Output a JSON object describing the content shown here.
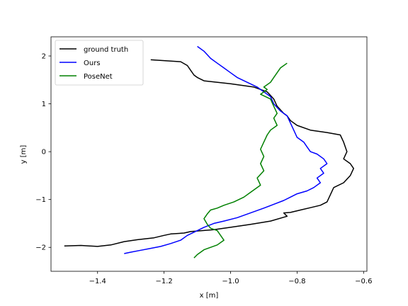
{
  "chart_data": {
    "type": "line",
    "title": "",
    "xlabel": "x [m]",
    "ylabel": "y [m]",
    "xlim": [
      -1.54,
      -0.59
    ],
    "ylim": [
      -2.5,
      2.4
    ],
    "xticks": [
      -1.4,
      -1.2,
      -1.0,
      -0.8,
      -0.6
    ],
    "xtick_labels": [
      "−1.4",
      "−1.2",
      "−1.0",
      "−0.8",
      "−0.6"
    ],
    "yticks": [
      -2,
      -1,
      0,
      1,
      2
    ],
    "ytick_labels": [
      "−2",
      "−1",
      "0",
      "1",
      "2"
    ],
    "grid": false,
    "legend_position": "top-left",
    "series": [
      {
        "name": "ground truth",
        "color": "#000000",
        "x": [
          -1.24,
          -1.15,
          -1.13,
          -1.12,
          -1.11,
          -1.1,
          -1.08,
          -1.0,
          -0.93,
          -0.89,
          -0.87,
          -0.86,
          -0.84,
          -0.83,
          -0.82,
          -0.8,
          -0.76,
          -0.71,
          -0.67,
          -0.66,
          -0.65,
          -0.66,
          -0.64,
          -0.63,
          -0.64,
          -0.66,
          -0.69,
          -0.7,
          -0.71,
          -0.73,
          -0.76,
          -0.79,
          -0.82,
          -0.84,
          -0.83,
          -0.88,
          -0.94,
          -1.0,
          -1.05,
          -1.12,
          -1.14,
          -1.18,
          -1.2,
          -1.23,
          -1.28,
          -1.32,
          -1.36,
          -1.4,
          -1.45,
          -1.5
        ],
        "y": [
          1.92,
          1.88,
          1.8,
          1.7,
          1.6,
          1.55,
          1.48,
          1.42,
          1.35,
          1.25,
          1.1,
          0.95,
          0.8,
          0.75,
          0.65,
          0.55,
          0.45,
          0.4,
          0.35,
          0.2,
          0.0,
          -0.15,
          -0.25,
          -0.35,
          -0.5,
          -0.65,
          -0.75,
          -0.9,
          -1.05,
          -1.12,
          -1.17,
          -1.22,
          -1.27,
          -1.28,
          -1.35,
          -1.45,
          -1.52,
          -1.58,
          -1.63,
          -1.67,
          -1.7,
          -1.72,
          -1.75,
          -1.8,
          -1.84,
          -1.88,
          -1.95,
          -1.98,
          -1.96,
          -1.97
        ]
      },
      {
        "name": "Ours",
        "color": "#0000ff",
        "x": [
          -1.1,
          -1.08,
          -1.06,
          -1.04,
          -1.02,
          -1.0,
          -0.98,
          -0.95,
          -0.92,
          -0.9,
          -0.88,
          -0.87,
          -0.85,
          -0.83,
          -0.82,
          -0.81,
          -0.8,
          -0.78,
          -0.77,
          -0.76,
          -0.74,
          -0.72,
          -0.71,
          -0.73,
          -0.72,
          -0.74,
          -0.73,
          -0.75,
          -0.77,
          -0.8,
          -0.82,
          -0.84,
          -0.87,
          -0.9,
          -0.94,
          -0.98,
          -1.02,
          -1.05,
          -1.08,
          -1.1,
          -1.13,
          -1.15,
          -1.18,
          -1.21,
          -1.24,
          -1.27,
          -1.3,
          -1.32
        ],
        "y": [
          2.2,
          2.1,
          1.95,
          1.85,
          1.75,
          1.65,
          1.55,
          1.45,
          1.35,
          1.25,
          1.15,
          1.0,
          0.85,
          0.75,
          0.6,
          0.45,
          0.3,
          0.2,
          0.1,
          0.0,
          -0.05,
          -0.15,
          -0.25,
          -0.35,
          -0.45,
          -0.55,
          -0.65,
          -0.75,
          -0.82,
          -0.88,
          -0.95,
          -1.02,
          -1.1,
          -1.18,
          -1.28,
          -1.38,
          -1.45,
          -1.5,
          -1.58,
          -1.65,
          -1.75,
          -1.85,
          -1.92,
          -1.98,
          -2.02,
          -2.06,
          -2.1,
          -2.13
        ]
      },
      {
        "name": "PoseNet",
        "color": "#008000",
        "x": [
          -0.83,
          -0.85,
          -0.86,
          -0.87,
          -0.88,
          -0.9,
          -0.89,
          -0.91,
          -0.88,
          -0.87,
          -0.86,
          -0.87,
          -0.86,
          -0.88,
          -0.89,
          -0.9,
          -0.91,
          -0.9,
          -0.91,
          -0.9,
          -0.92,
          -0.91,
          -0.94,
          -0.96,
          -0.99,
          -1.02,
          -1.04,
          -1.06,
          -1.07,
          -1.08,
          -1.07,
          -1.06,
          -1.04,
          -1.03,
          -1.02,
          -1.04,
          -1.06,
          -1.08,
          -1.1,
          -1.11
        ],
        "y": [
          1.85,
          1.75,
          1.65,
          1.55,
          1.45,
          1.35,
          1.3,
          1.2,
          1.1,
          0.95,
          0.8,
          0.7,
          0.55,
          0.45,
          0.35,
          0.2,
          0.05,
          -0.1,
          -0.25,
          -0.4,
          -0.55,
          -0.7,
          -0.85,
          -0.95,
          -1.05,
          -1.12,
          -1.18,
          -1.22,
          -1.3,
          -1.4,
          -1.52,
          -1.6,
          -1.65,
          -1.75,
          -1.85,
          -1.95,
          -2.0,
          -2.05,
          -2.15,
          -2.22
        ]
      }
    ]
  }
}
